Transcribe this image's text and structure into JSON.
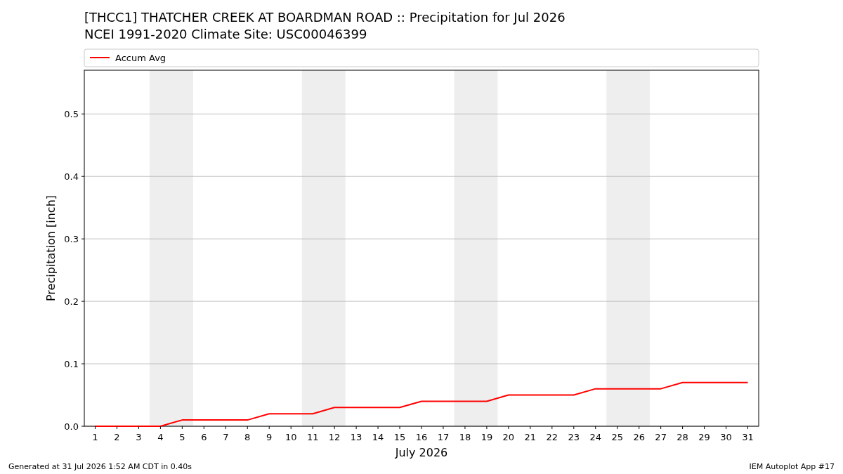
{
  "chart_data": {
    "type": "line",
    "title": "[THCC1] THATCHER CREEK AT BOARDMAN ROAD :: Precipitation for Jul 2026",
    "subtitle": "NCEI 1991-2020 Climate Site: USC00046399",
    "xlabel": "July 2026",
    "ylabel": "Precipitation [inch]",
    "annotations": [
      "Generated at 31 Jul 2026 1:52 AM CDT in 0.40s",
      "IEM Autoplot App #17"
    ],
    "x": [
      1,
      2,
      3,
      4,
      5,
      6,
      7,
      8,
      9,
      10,
      11,
      12,
      13,
      14,
      15,
      16,
      17,
      18,
      19,
      20,
      21,
      22,
      23,
      24,
      25,
      26,
      27,
      28,
      29,
      30,
      31
    ],
    "series": [
      {
        "name": "Accum Avg",
        "color": "#ff0000",
        "values": [
          0,
          0,
          0,
          0,
          0.01,
          0.01,
          0.01,
          0.01,
          0.02,
          0.02,
          0.02,
          0.03,
          0.03,
          0.03,
          0.03,
          0.04,
          0.04,
          0.04,
          0.04,
          0.05,
          0.05,
          0.05,
          0.05,
          0.06,
          0.06,
          0.06,
          0.06,
          0.07,
          0.07,
          0.07,
          0.07
        ]
      }
    ],
    "xlim": [
      0.5,
      31.5
    ],
    "xticks": [
      1,
      2,
      3,
      4,
      5,
      6,
      7,
      8,
      9,
      10,
      11,
      12,
      13,
      14,
      15,
      16,
      17,
      18,
      19,
      20,
      21,
      22,
      23,
      24,
      25,
      26,
      27,
      28,
      29,
      30,
      31
    ],
    "ylim": [
      0,
      0.57
    ],
    "yticks": [
      {
        "value": 0,
        "label": "0.0"
      },
      0.1,
      0.2,
      0.3,
      0.4,
      0.5
    ],
    "bands": [
      {
        "axis": "x",
        "from": 3.5,
        "to": 5.5,
        "color": "#eeeeee"
      },
      {
        "axis": "x",
        "from": 10.5,
        "to": 12.5,
        "color": "#eeeeee"
      },
      {
        "axis": "x",
        "from": 17.5,
        "to": 19.5,
        "color": "#eeeeee"
      },
      {
        "axis": "x",
        "from": 24.5,
        "to": 26.5,
        "color": "#eeeeee"
      }
    ],
    "grid": "y",
    "legend": "top"
  }
}
